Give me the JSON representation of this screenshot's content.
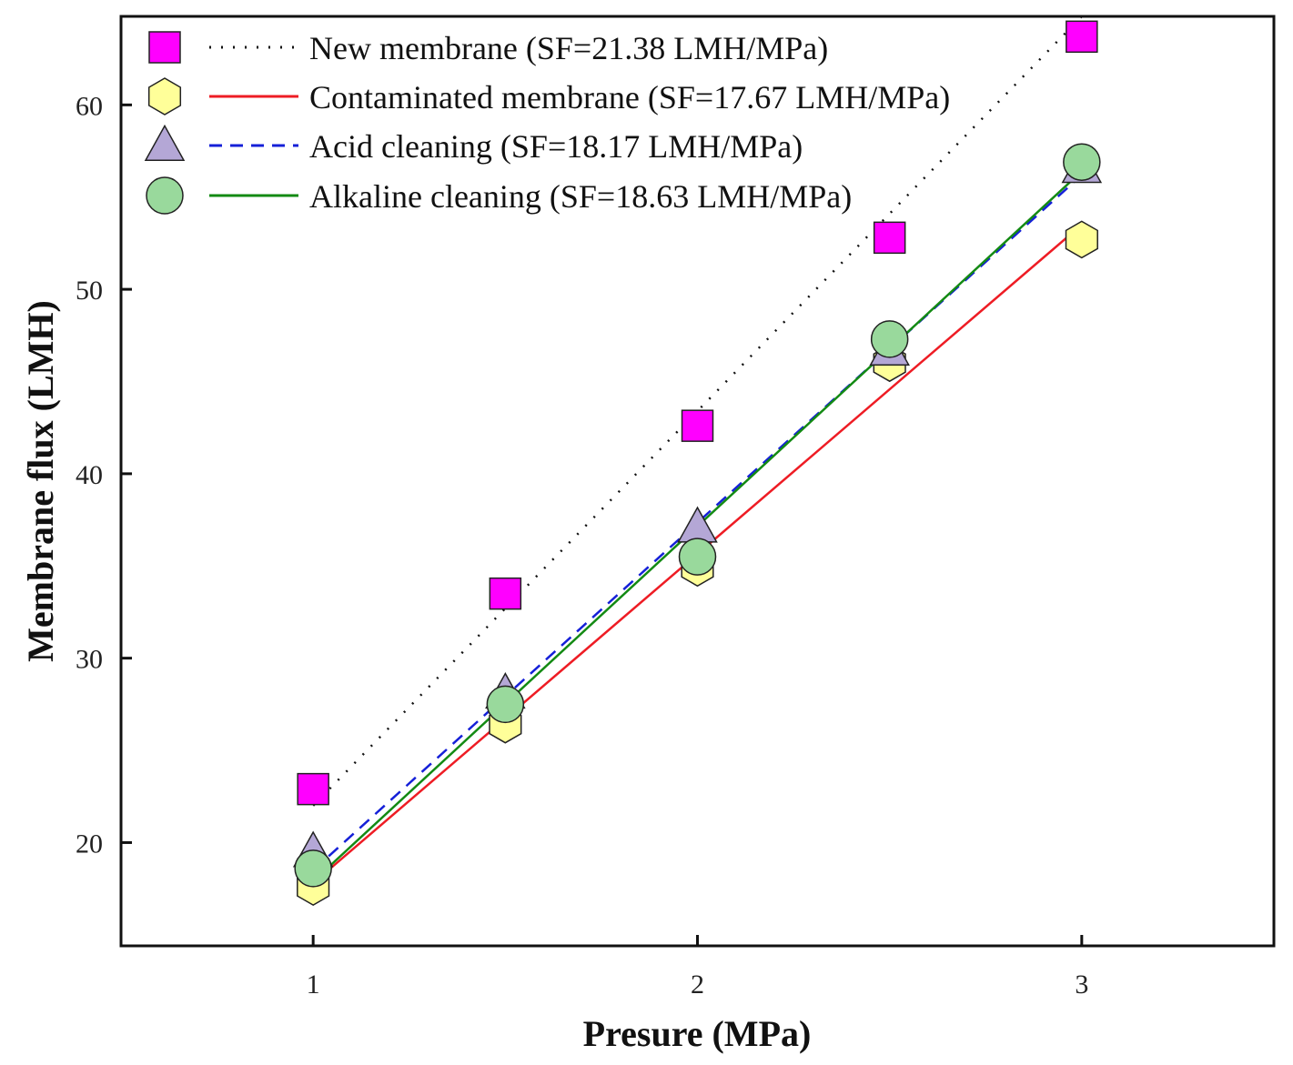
{
  "chart_data": {
    "type": "scatter",
    "xlabel": "Presure (MPa)",
    "ylabel": "Membrane flux (LMH)",
    "xlim": [
      0.5,
      3.5
    ],
    "ylim": [
      14.4,
      64.8
    ],
    "xticks": [
      1,
      2,
      3
    ],
    "yticks": [
      20,
      30,
      40,
      50,
      60
    ],
    "x": [
      1,
      1.5,
      2,
      2.5,
      3
    ],
    "grid": false,
    "legend_position": "top-left",
    "series": [
      {
        "name": "New membrane (SF=21.38 LMH/MPa)",
        "marker": "square",
        "marker_color": "#ff00ff",
        "line_style": "dotted",
        "line_color": "#111111",
        "values": [
          22.9,
          33.5,
          42.6,
          52.8,
          63.7
        ],
        "fit": [
          22.0,
          64.8
        ]
      },
      {
        "name": "Contaminated membrane (SF=17.67 LMH/MPa)",
        "marker": "hexagon",
        "marker_color": "#ffff99",
        "line_style": "solid",
        "line_color": "#ee1c24",
        "values": [
          17.6,
          26.4,
          34.9,
          46.0,
          52.7
        ],
        "fit": [
          17.8,
          53.5
        ]
      },
      {
        "name": "Acid cleaning (SF=18.17 LMH/MPa)",
        "marker": "triangle",
        "marker_color": "#b4a7d6",
        "line_style": "dashed",
        "line_color": "#1520d8",
        "values": [
          19.5,
          28.1,
          37.1,
          46.7,
          56.6
        ],
        "fit": [
          18.5,
          56.2
        ]
      },
      {
        "name": "Alkaline cleaning (SF=18.63 LMH/MPa)",
        "marker": "circle",
        "marker_color": "#99d99c",
        "line_style": "solid",
        "line_color": "#138a13",
        "values": [
          18.6,
          27.5,
          35.5,
          47.3,
          56.9
        ],
        "fit": [
          17.9,
          56.4
        ]
      }
    ]
  }
}
